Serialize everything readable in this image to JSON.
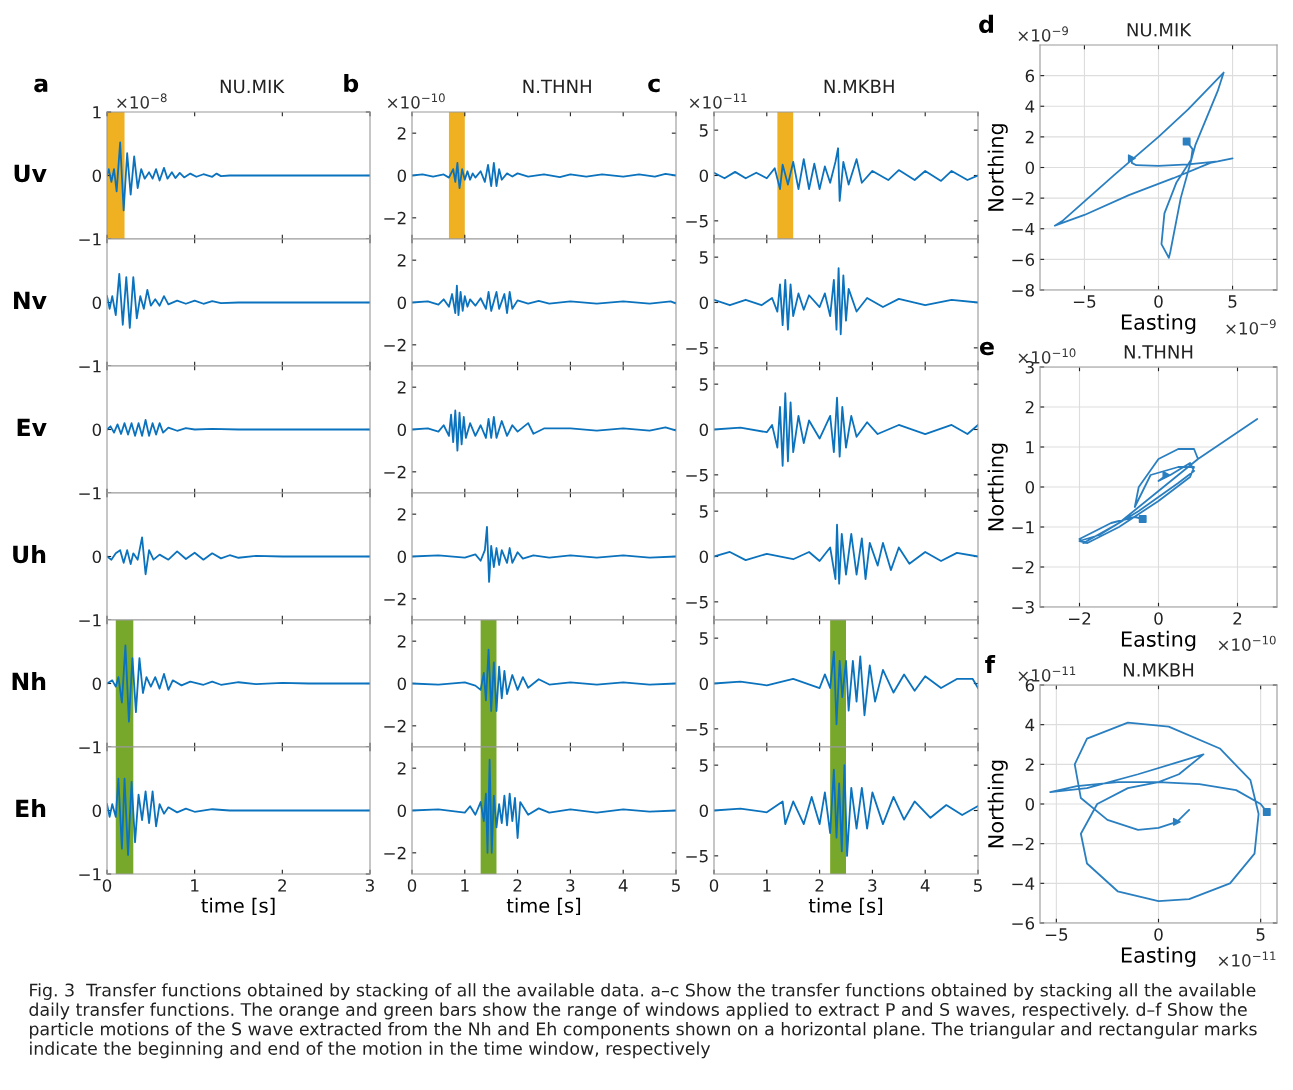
{
  "chart_data": [
    {
      "type": "line",
      "title": "NU.MIK",
      "ylabel": "Uv",
      "annotations": [
        "a",
        "×10$^{−8}$",
        "Fig. 3  Transfer functions obtained by stacking of all the available data. a–c Show the transfer functions obtained by stacking all the available daily transfer functions. The orange and green bars show the range of windows applied to extract P and S waves, respectively. d–f Show the particle motions of the S wave extracted from the Nh and Eh components shown on a horizontal plane. The triangular and rectangular marks indicate the beginning and end of the motion in the time window, respectively"
      ],
      "color": "#0b72bd",
      "xlim": [
        0,
        3
      ],
      "xticks": [
        0,
        1,
        2,
        3
      ],
      "ylim": [
        -1,
        1
      ],
      "yticks": [
        -1,
        0,
        1
      ],
      "tick_labels": "y",
      "bands": [
        {
          "axis": "x",
          "from": 0,
          "to": 0.2,
          "color": "#efb021"
        }
      ],
      "x": [
        0,
        0.02,
        0.05,
        0.08,
        0.11,
        0.15,
        0.19,
        0.23,
        0.27,
        0.31,
        0.35,
        0.39,
        0.43,
        0.48,
        0.52,
        0.56,
        0.6,
        0.65,
        0.69,
        0.74,
        0.78,
        0.83,
        0.88,
        0.95,
        1.02,
        1.1,
        1.2,
        1.25,
        1.3,
        1.4,
        2,
        3
      ],
      "values": [
        0,
        0.1,
        -0.1,
        0.1,
        -0.25,
        0.52,
        -0.55,
        0.35,
        -0.3,
        0.3,
        -0.2,
        0.1,
        -0.05,
        0.05,
        -0.05,
        0.1,
        -0.08,
        0.12,
        -0.05,
        0.05,
        -0.04,
        0.04,
        -0.03,
        0.03,
        -0.02,
        0.02,
        -0.02,
        0.03,
        -0.01,
        0,
        0,
        0
      ]
    },
    {
      "type": "line",
      "ylabel": "Nv",
      "color": "#0b72bd",
      "xlim": [
        0,
        3
      ],
      "xticks": [
        0,
        1,
        2,
        3
      ],
      "ylim": [
        -1,
        1
      ],
      "yticks": [
        -1,
        0
      ],
      "tick_labels": "y",
      "x": [
        0,
        0.03,
        0.06,
        0.1,
        0.14,
        0.18,
        0.22,
        0.26,
        0.3,
        0.34,
        0.38,
        0.42,
        0.46,
        0.5,
        0.55,
        0.6,
        0.65,
        0.7,
        0.8,
        0.9,
        1.0,
        1.1,
        1.2,
        1.3,
        1.5,
        3
      ],
      "values": [
        0.1,
        -0.1,
        0.1,
        -0.2,
        0.45,
        -0.35,
        0.4,
        -0.4,
        0.4,
        -0.25,
        0.1,
        -0.1,
        0.2,
        -0.05,
        0.05,
        -0.05,
        0.1,
        -0.03,
        0.03,
        -0.02,
        0.03,
        -0.02,
        0.02,
        -0.01,
        0,
        0
      ]
    },
    {
      "type": "line",
      "ylabel": "Ev",
      "color": "#0b72bd",
      "xlim": [
        0,
        3
      ],
      "xticks": [
        0,
        1,
        2,
        3
      ],
      "ylim": [
        -1,
        1
      ],
      "yticks": [
        -1,
        0
      ],
      "tick_labels": "y",
      "x": [
        0,
        0.04,
        0.08,
        0.12,
        0.16,
        0.2,
        0.24,
        0.28,
        0.32,
        0.36,
        0.4,
        0.44,
        0.48,
        0.52,
        0.56,
        0.6,
        0.64,
        0.7,
        0.8,
        0.9,
        1.0,
        1.2,
        1.5,
        3
      ],
      "values": [
        0,
        0.05,
        -0.05,
        0.08,
        -0.07,
        0.1,
        -0.08,
        0.1,
        -0.1,
        0.1,
        -0.1,
        0.15,
        -0.1,
        0.1,
        -0.08,
        0.1,
        -0.05,
        0.03,
        -0.02,
        0.02,
        0,
        0.01,
        0,
        0
      ]
    },
    {
      "type": "line",
      "ylabel": "Uh",
      "color": "#0b72bd",
      "xlim": [
        0,
        3
      ],
      "xticks": [
        0,
        1,
        2,
        3
      ],
      "ylim": [
        -1,
        1
      ],
      "yticks": [
        -1,
        0
      ],
      "tick_labels": "y",
      "x": [
        0,
        0.05,
        0.1,
        0.15,
        0.19,
        0.23,
        0.27,
        0.3,
        0.35,
        0.4,
        0.44,
        0.48,
        0.53,
        0.6,
        0.7,
        0.8,
        0.9,
        1.0,
        1.1,
        1.2,
        1.3,
        1.4,
        1.5,
        1.7,
        2,
        3
      ],
      "values": [
        0,
        -0.05,
        0.05,
        0.1,
        -0.1,
        0.1,
        -0.12,
        0.05,
        -0.05,
        0.3,
        -0.28,
        0.1,
        -0.05,
        0.03,
        -0.05,
        0.08,
        -0.04,
        0.06,
        -0.05,
        0.05,
        -0.03,
        0.02,
        -0.02,
        0.01,
        0,
        0
      ]
    },
    {
      "type": "line",
      "ylabel": "Nh",
      "color": "#0b72bd",
      "xlim": [
        0,
        3
      ],
      "xticks": [
        0,
        1,
        2,
        3
      ],
      "ylim": [
        -1,
        1
      ],
      "yticks": [
        -1,
        0
      ],
      "tick_labels": "y",
      "bands": [
        {
          "axis": "x",
          "from": 0.1,
          "to": 0.3,
          "color": "#78a82b"
        }
      ],
      "x": [
        0,
        0.06,
        0.1,
        0.13,
        0.17,
        0.21,
        0.25,
        0.29,
        0.33,
        0.37,
        0.41,
        0.45,
        0.5,
        0.55,
        0.6,
        0.65,
        0.7,
        0.75,
        0.85,
        0.95,
        1.1,
        1.2,
        1.3,
        1.5,
        1.7,
        2,
        2.3,
        3
      ],
      "values": [
        0,
        0.05,
        -0.05,
        0.1,
        -0.3,
        0.6,
        -0.6,
        0.4,
        -0.45,
        0.4,
        -0.15,
        0.1,
        -0.05,
        0.1,
        -0.08,
        0.15,
        -0.1,
        0.05,
        -0.03,
        0.03,
        -0.02,
        0.03,
        -0.02,
        0.02,
        -0.01,
        0.01,
        0,
        0
      ]
    },
    {
      "type": "line",
      "ylabel": "Eh",
      "xlabel": "time [s]",
      "color": "#0b72bd",
      "xlim": [
        0,
        3
      ],
      "xticks": [
        0,
        1,
        2,
        3
      ],
      "ylim": [
        -1,
        1
      ],
      "yticks": [
        -1,
        0
      ],
      "bands": [
        {
          "axis": "x",
          "from": 0.1,
          "to": 0.3,
          "color": "#78a82b"
        }
      ],
      "x": [
        0,
        0.03,
        0.06,
        0.1,
        0.13,
        0.17,
        0.2,
        0.24,
        0.28,
        0.32,
        0.36,
        0.4,
        0.44,
        0.48,
        0.52,
        0.56,
        0.6,
        0.65,
        0.7,
        0.8,
        0.9,
        1.0,
        1.2,
        1.4,
        3
      ],
      "values": [
        0.1,
        -0.1,
        0.1,
        -0.1,
        0.5,
        -0.6,
        0.5,
        -0.7,
        0.45,
        -0.5,
        0.25,
        -0.15,
        0.3,
        -0.2,
        0.3,
        -0.25,
        0.1,
        -0.05,
        0.05,
        -0.03,
        0.03,
        -0.02,
        0.02,
        0,
        0
      ]
    },
    {
      "type": "line",
      "title": "N.THNH",
      "annotations": [
        "b",
        "×10$^{−10}$"
      ],
      "color": "#0b72bd",
      "xlim": [
        0,
        5
      ],
      "xticks": [
        0,
        1,
        2,
        3,
        4,
        5
      ],
      "ylim": [
        -3,
        3
      ],
      "yticks": [
        -2,
        0,
        2
      ],
      "tick_labels": "y",
      "bands": [
        {
          "axis": "x",
          "from": 0.7,
          "to": 1.0,
          "color": "#efb021"
        }
      ],
      "x": [
        0,
        0.2,
        0.4,
        0.6,
        0.7,
        0.78,
        0.82,
        0.86,
        0.9,
        0.95,
        1.0,
        1.05,
        1.1,
        1.15,
        1.2,
        1.3,
        1.38,
        1.44,
        1.5,
        1.55,
        1.6,
        1.65,
        1.7,
        1.8,
        1.9,
        2.0,
        2.2,
        2.5,
        2.8,
        3,
        3.3,
        3.6,
        4,
        4.3,
        4.6,
        4.8,
        5
      ],
      "values": [
        0,
        0.05,
        -0.05,
        0.05,
        -0.1,
        0.3,
        -0.3,
        0.6,
        -0.6,
        0.3,
        -0.2,
        0.2,
        -0.2,
        0.1,
        -0.1,
        0.2,
        -0.3,
        0.5,
        -0.5,
        0.6,
        -0.5,
        0.3,
        -0.2,
        0.1,
        -0.05,
        0.1,
        -0.05,
        0.05,
        -0.08,
        0.05,
        -0.05,
        0.05,
        -0.05,
        0.05,
        -0.05,
        0.08,
        0
      ]
    },
    {
      "type": "line",
      "color": "#0b72bd",
      "xlim": [
        0,
        5
      ],
      "xticks": [
        0,
        1,
        2,
        3,
        4,
        5
      ],
      "ylim": [
        -3,
        3
      ],
      "yticks": [
        -2,
        0,
        2
      ],
      "tick_labels": "y",
      "x": [
        0,
        0.3,
        0.5,
        0.6,
        0.7,
        0.76,
        0.82,
        0.85,
        0.88,
        0.92,
        0.96,
        1.0,
        1.05,
        1.1,
        1.2,
        1.3,
        1.4,
        1.45,
        1.5,
        1.6,
        1.65,
        1.75,
        1.8,
        1.85,
        1.9,
        2.0,
        2.2,
        2.4,
        2.6,
        3,
        3.5,
        4,
        4.5,
        4.9,
        5
      ],
      "values": [
        0,
        0.05,
        -0.1,
        0.15,
        -0.2,
        0.4,
        -0.5,
        0.8,
        -0.6,
        0.5,
        -0.4,
        0.3,
        -0.2,
        0.15,
        -0.15,
        0.2,
        -0.3,
        0.5,
        -0.4,
        0.5,
        -0.3,
        0.4,
        -0.5,
        0.5,
        -0.3,
        0.1,
        -0.05,
        0.08,
        -0.05,
        0.05,
        -0.05,
        0.05,
        -0.05,
        0.05,
        -0.05
      ]
    },
    {
      "type": "line",
      "color": "#0b72bd",
      "xlim": [
        0,
        5
      ],
      "xticks": [
        0,
        1,
        2,
        3,
        4,
        5
      ],
      "ylim": [
        -3,
        3
      ],
      "yticks": [
        -2,
        0,
        2
      ],
      "tick_labels": "y",
      "x": [
        0,
        0.3,
        0.5,
        0.6,
        0.7,
        0.74,
        0.78,
        0.82,
        0.86,
        0.9,
        0.94,
        0.98,
        1.02,
        1.1,
        1.2,
        1.3,
        1.4,
        1.45,
        1.5,
        1.55,
        1.6,
        1.7,
        1.8,
        1.9,
        2.0,
        2.2,
        2.3,
        2.5,
        3,
        3.5,
        4,
        4.5,
        4.8,
        5
      ],
      "values": [
        0,
        0.05,
        -0.1,
        0.2,
        -0.3,
        0.7,
        -0.6,
        0.9,
        -1.0,
        0.8,
        -0.7,
        0.6,
        -0.4,
        0.3,
        -0.3,
        0.2,
        -0.4,
        0.5,
        -0.4,
        0.6,
        -0.4,
        0.4,
        -0.3,
        0.2,
        -0.1,
        0.3,
        -0.2,
        0.05,
        0.05,
        -0.05,
        0.05,
        -0.05,
        0.1,
        -0.05
      ]
    },
    {
      "type": "line",
      "color": "#0b72bd",
      "xlim": [
        0,
        5
      ],
      "xticks": [
        0,
        1,
        2,
        3,
        4,
        5
      ],
      "ylim": [
        -3,
        3
      ],
      "yticks": [
        -2,
        0,
        2
      ],
      "tick_labels": "y",
      "x": [
        0,
        0.5,
        1.0,
        1.2,
        1.3,
        1.38,
        1.42,
        1.46,
        1.5,
        1.55,
        1.6,
        1.65,
        1.7,
        1.8,
        1.85,
        1.9,
        2.0,
        2.1,
        2.3,
        2.6,
        3,
        3.5,
        4,
        4.5,
        5
      ],
      "values": [
        0,
        0.05,
        -0.05,
        0.1,
        -0.2,
        0.3,
        1.4,
        -1.2,
        0.5,
        -0.5,
        0.4,
        -0.4,
        0.3,
        -0.3,
        0.4,
        -0.3,
        0.2,
        -0.1,
        0.05,
        -0.05,
        0.05,
        -0.05,
        0.05,
        -0.05,
        0
      ]
    },
    {
      "type": "line",
      "color": "#0b72bd",
      "xlim": [
        0,
        5
      ],
      "xticks": [
        0,
        1,
        2,
        3,
        4,
        5
      ],
      "ylim": [
        -3,
        3
      ],
      "yticks": [
        -2,
        0,
        2
      ],
      "tick_labels": "y",
      "bands": [
        {
          "axis": "x",
          "from": 1.3,
          "to": 1.6,
          "color": "#78a82b"
        }
      ],
      "x": [
        0,
        0.5,
        1.0,
        1.2,
        1.3,
        1.36,
        1.4,
        1.45,
        1.5,
        1.55,
        1.6,
        1.65,
        1.7,
        1.75,
        1.8,
        1.9,
        2.0,
        2.1,
        2.2,
        2.4,
        2.6,
        3,
        3.5,
        4,
        4.5,
        5
      ],
      "values": [
        0,
        -0.05,
        0.05,
        -0.1,
        -0.3,
        0.5,
        -0.8,
        1.6,
        -1.3,
        1.0,
        -1.3,
        0.8,
        -0.7,
        0.6,
        -0.5,
        0.4,
        -0.3,
        0.3,
        -0.2,
        0.2,
        -0.05,
        0.05,
        -0.05,
        0.05,
        -0.05,
        0
      ]
    },
    {
      "type": "line",
      "xlabel": "time [s]",
      "color": "#0b72bd",
      "xlim": [
        0,
        5
      ],
      "xticks": [
        0,
        1,
        2,
        3,
        4,
        5
      ],
      "ylim": [
        -3,
        3
      ],
      "yticks": [
        -2,
        0,
        2
      ],
      "bands": [
        {
          "axis": "x",
          "from": 1.3,
          "to": 1.6,
          "color": "#78a82b"
        }
      ],
      "x": [
        0,
        0.5,
        1.0,
        1.1,
        1.2,
        1.3,
        1.36,
        1.4,
        1.43,
        1.47,
        1.51,
        1.55,
        1.6,
        1.65,
        1.7,
        1.75,
        1.8,
        1.85,
        1.9,
        1.95,
        2.0,
        2.05,
        2.2,
        2.4,
        2.6,
        3,
        3.5,
        4,
        4.5,
        5
      ],
      "values": [
        0,
        0.05,
        -0.1,
        0.2,
        -0.2,
        0.4,
        -0.5,
        0.8,
        -2.0,
        2.4,
        -2.0,
        0.7,
        -0.8,
        0.3,
        -0.6,
        0.7,
        -0.7,
        0.8,
        -0.5,
        0.6,
        -1.3,
        0.4,
        -0.2,
        0.1,
        -0.1,
        0.05,
        -0.1,
        0.05,
        -0.05,
        0
      ]
    },
    {
      "type": "line",
      "title": "N.MKBH",
      "annotations": [
        "c",
        "×10$^{−11}$"
      ],
      "color": "#0b72bd",
      "xlim": [
        0,
        5
      ],
      "xticks": [
        0,
        1,
        2,
        3,
        4,
        5
      ],
      "ylim": [
        -7,
        7
      ],
      "yticks": [
        -5,
        0,
        5
      ],
      "tick_labels": "y",
      "bands": [
        {
          "axis": "x",
          "from": 1.2,
          "to": 1.5,
          "color": "#efb021"
        }
      ],
      "x": [
        0,
        0.2,
        0.4,
        0.6,
        0.8,
        1.0,
        1.15,
        1.25,
        1.3,
        1.4,
        1.5,
        1.6,
        1.7,
        1.8,
        1.9,
        2.0,
        2.1,
        2.2,
        2.3,
        2.35,
        2.38,
        2.45,
        2.55,
        2.7,
        2.8,
        3.0,
        3.3,
        3.5,
        3.8,
        4.0,
        4.3,
        4.5,
        4.8,
        5
      ],
      "values": [
        0.3,
        -0.3,
        0.4,
        -0.3,
        0.3,
        -0.3,
        0.8,
        -1.5,
        1.2,
        -1.0,
        1.5,
        -1.5,
        1.8,
        -1.5,
        1.3,
        -1.5,
        1.0,
        -0.8,
        1.5,
        3.0,
        -2.8,
        1.5,
        -1.0,
        1.8,
        -0.8,
        0.5,
        -0.5,
        0.6,
        -0.5,
        0.5,
        -0.6,
        0.5,
        -0.5,
        0
      ]
    },
    {
      "type": "line",
      "color": "#0b72bd",
      "xlim": [
        0,
        5
      ],
      "xticks": [
        0,
        1,
        2,
        3,
        4,
        5
      ],
      "ylim": [
        -7,
        7
      ],
      "yticks": [
        -5,
        0,
        5
      ],
      "tick_labels": "y",
      "x": [
        0,
        0.3,
        0.6,
        0.9,
        1.1,
        1.2,
        1.25,
        1.3,
        1.35,
        1.4,
        1.45,
        1.5,
        1.6,
        1.7,
        1.8,
        2.0,
        2.1,
        2.2,
        2.27,
        2.32,
        2.36,
        2.4,
        2.45,
        2.5,
        2.55,
        2.7,
        2.9,
        3.2,
        3.5,
        4,
        4.5,
        5
      ],
      "values": [
        0.3,
        -0.3,
        0.3,
        -0.3,
        0.5,
        -1.0,
        2.0,
        -2.5,
        2.5,
        -3.0,
        2.0,
        -1.5,
        1.0,
        -0.8,
        0.8,
        -0.5,
        1.0,
        -1.5,
        2.5,
        -3.0,
        3.8,
        -3.5,
        3.0,
        -2.0,
        1.5,
        -1.0,
        0.5,
        -0.5,
        0.4,
        -0.3,
        0.3,
        0
      ]
    },
    {
      "type": "line",
      "color": "#0b72bd",
      "xlim": [
        0,
        5
      ],
      "xticks": [
        0,
        1,
        2,
        3,
        4,
        5
      ],
      "ylim": [
        -7,
        7
      ],
      "yticks": [
        -5,
        0,
        5
      ],
      "tick_labels": "y",
      "x": [
        0,
        0.5,
        1.0,
        1.1,
        1.2,
        1.25,
        1.3,
        1.35,
        1.4,
        1.45,
        1.5,
        1.6,
        1.7,
        1.8,
        2.0,
        2.2,
        2.27,
        2.33,
        2.38,
        2.43,
        2.5,
        2.6,
        2.7,
        2.9,
        3.1,
        3.5,
        4,
        4.5,
        4.8,
        5
      ],
      "values": [
        0,
        0.2,
        -0.3,
        0.5,
        -2.0,
        2.5,
        -4.0,
        4.0,
        -3.5,
        3.0,
        -2.5,
        1.5,
        -1.5,
        1.0,
        -1.0,
        1.5,
        -2.5,
        3.5,
        -3.0,
        2.5,
        -2.0,
        1.5,
        -0.8,
        0.8,
        -0.5,
        0.5,
        -0.5,
        0.5,
        -0.5,
        0.5
      ]
    },
    {
      "type": "line",
      "color": "#0b72bd",
      "xlim": [
        0,
        5
      ],
      "xticks": [
        0,
        1,
        2,
        3,
        4,
        5
      ],
      "ylim": [
        -7,
        7
      ],
      "yticks": [
        -5,
        0,
        5
      ],
      "tick_labels": "y",
      "x": [
        0,
        0.3,
        0.6,
        1.0,
        1.5,
        1.8,
        2.0,
        2.2,
        2.3,
        2.33,
        2.37,
        2.42,
        2.5,
        2.6,
        2.7,
        2.8,
        2.87,
        2.95,
        3.1,
        3.2,
        3.35,
        3.5,
        3.7,
        4.0,
        4.3,
        4.6,
        5
      ],
      "values": [
        0,
        0.5,
        -0.4,
        0.3,
        -0.3,
        0.5,
        -0.5,
        1.0,
        -2.5,
        3.5,
        -3.0,
        2.5,
        -2.0,
        2.5,
        -2.0,
        2.0,
        -2.5,
        1.5,
        -1.0,
        1.5,
        -1.5,
        1.0,
        -0.8,
        0.5,
        -0.5,
        0.4,
        0
      ]
    },
    {
      "type": "line",
      "color": "#0b72bd",
      "xlim": [
        0,
        5
      ],
      "xticks": [
        0,
        1,
        2,
        3,
        4,
        5
      ],
      "ylim": [
        -7,
        7
      ],
      "yticks": [
        -5,
        0,
        5
      ],
      "tick_labels": "y",
      "bands": [
        {
          "axis": "x",
          "from": 2.2,
          "to": 2.5,
          "color": "#78a82b"
        }
      ],
      "x": [
        0,
        0.5,
        1.0,
        1.5,
        2.0,
        2.1,
        2.2,
        2.27,
        2.32,
        2.38,
        2.43,
        2.5,
        2.55,
        2.63,
        2.7,
        2.77,
        2.85,
        2.95,
        3.05,
        3.2,
        3.4,
        3.6,
        3.8,
        4.0,
        4.3,
        4.6,
        4.9,
        5
      ],
      "values": [
        0,
        0.2,
        -0.2,
        0.5,
        -0.5,
        1.0,
        -0.5,
        3.5,
        -4.5,
        2.5,
        -1.5,
        2.5,
        -3.0,
        2.5,
        -2.0,
        3.0,
        -3.5,
        2.0,
        -2.0,
        1.5,
        -1.0,
        1.0,
        -0.8,
        0.8,
        -0.5,
        0.5,
        0.5,
        -0.5
      ]
    },
    {
      "type": "line",
      "xlabel": "time [s]",
      "color": "#0b72bd",
      "xlim": [
        0,
        5
      ],
      "xticks": [
        0,
        1,
        2,
        3,
        4,
        5
      ],
      "ylim": [
        -7,
        7
      ],
      "yticks": [
        -5,
        0,
        5
      ],
      "bands": [
        {
          "axis": "x",
          "from": 2.2,
          "to": 2.5,
          "color": "#78a82b"
        }
      ],
      "x": [
        0,
        0.5,
        1.0,
        1.3,
        1.35,
        1.5,
        1.7,
        1.85,
        2.0,
        2.1,
        2.2,
        2.27,
        2.32,
        2.37,
        2.42,
        2.47,
        2.52,
        2.6,
        2.7,
        2.8,
        2.9,
        3.0,
        3.2,
        3.4,
        3.6,
        3.8,
        4.1,
        4.4,
        4.7,
        5
      ],
      "values": [
        0,
        0.2,
        -0.2,
        1.0,
        -1.5,
        1.0,
        -1.5,
        1.5,
        -1.5,
        2.0,
        -2.5,
        4.5,
        -3.0,
        3.0,
        -4.5,
        5.0,
        -5.0,
        2.5,
        -2.0,
        2.5,
        -2.0,
        2.0,
        -1.5,
        1.5,
        -1.0,
        1.0,
        -0.8,
        0.6,
        -0.5,
        0.5
      ]
    },
    {
      "type": "line",
      "title": "NU.MIK",
      "xlabel": "Easting",
      "ylabel": "Northing",
      "annotations": [
        "d",
        "×10$^{−9}$",
        "×10$^{−9}$"
      ],
      "grid": true,
      "xlim": [
        -8,
        8
      ],
      "xticks": [
        -5,
        0,
        5
      ],
      "ylim": [
        -8,
        8
      ],
      "yticks": [
        -8,
        -6,
        -4,
        -2,
        0,
        2,
        4,
        6
      ],
      "series": [
        {
          "type": "line",
          "color": "#2a7fc0",
          "x": [
            -1.8,
            -1.8,
            -1.5,
            0,
            2,
            4,
            5,
            3.5,
            1,
            -2,
            -5,
            -7,
            -6.5,
            -3,
            0,
            2,
            4.4,
            4,
            2.5,
            1.5,
            0.8,
            0.7,
            0.2,
            0.4,
            1.2,
            2.2,
            2.3,
            1.9
          ],
          "values": [
            0.6,
            0.3,
            0.15,
            0.1,
            0.2,
            0.4,
            0.6,
            0.3,
            -0.7,
            -1.8,
            -3.1,
            -3.8,
            -3.5,
            -0.5,
            2,
            3.8,
            6.2,
            5,
            1.5,
            -2,
            -5.5,
            -5.9,
            -5,
            -3,
            -1,
            0.5,
            1.2,
            1.7
          ]
        },
        {
          "type": "scatter",
          "marker": "triangle",
          "color": "#2a7fc0",
          "x": [
            -1.8
          ],
          "values": [
            0.6
          ]
        },
        {
          "type": "scatter",
          "marker": "square",
          "color": "#2a7fc0",
          "x": [
            1.9
          ],
          "values": [
            1.7
          ]
        }
      ]
    },
    {
      "type": "line",
      "title": "N.THNH",
      "xlabel": "Easting",
      "ylabel": "Northing",
      "annotations": [
        "e",
        "×10$^{−10}$",
        "×10$^{−10}$"
      ],
      "grid": true,
      "xlim": [
        -3,
        3
      ],
      "xticks": [
        -2,
        0,
        2
      ],
      "ylim": [
        -3,
        3
      ],
      "yticks": [
        -3,
        -2,
        -1,
        0,
        1,
        2,
        3
      ],
      "series": [
        {
          "type": "line",
          "color": "#2a7fc0",
          "x": [
            0.2,
            0,
            0.3,
            0.8,
            0.9,
            0.5,
            -0.5,
            -1.5,
            -2,
            -1.8,
            -1,
            0,
            0.8,
            0.9,
            0.5,
            -0.2,
            -0.6,
            -0.5,
            0,
            0.5,
            0.9,
            1,
            2.5,
            1,
            0,
            -1,
            -1.9,
            -2,
            -1.2,
            -0.6,
            -0.4
          ],
          "values": [
            0.3,
            0.15,
            0.3,
            0.6,
            0.4,
            0.1,
            -0.6,
            -1.2,
            -1.35,
            -1.4,
            -1,
            -0.35,
            0.25,
            0.5,
            0.5,
            0.3,
            -0.5,
            0,
            0.7,
            0.95,
            0.95,
            0.7,
            1.7,
            0.7,
            -0.1,
            -0.9,
            -1.4,
            -1.3,
            -0.9,
            -0.75,
            -0.8
          ]
        },
        {
          "type": "scatter",
          "marker": "triangle",
          "color": "#2a7fc0",
          "x": [
            0.2
          ],
          "values": [
            0.3
          ]
        },
        {
          "type": "scatter",
          "marker": "square",
          "color": "#2a7fc0",
          "x": [
            -0.4
          ],
          "values": [
            -0.8
          ]
        }
      ]
    },
    {
      "type": "line",
      "title": "N.MKBH",
      "xlabel": "Easting",
      "ylabel": "Northing",
      "annotations": [
        "f",
        "×10$^{−11}$",
        "×10$^{−11}$"
      ],
      "grid": true,
      "xlim": [
        -5.8,
        5.8
      ],
      "xticks": [
        -5,
        0,
        5
      ],
      "ylim": [
        -6,
        6
      ],
      "yticks": [
        -6,
        -4,
        -2,
        0,
        2,
        4,
        6
      ],
      "series": [
        {
          "type": "line",
          "color": "#2a7fc0",
          "x": [
            0.9,
            1.2,
            1.5,
            1.3,
            0.9,
            0,
            -1,
            -2.5,
            -3.8,
            -4.1,
            -3.5,
            -1.5,
            0.5,
            3,
            4.5,
            4.9,
            4.7,
            3.5,
            1.5,
            0,
            -2,
            -3.5,
            -3.8,
            -3,
            -1.5,
            0,
            1,
            2.2,
            -1,
            -3.5,
            -5.3,
            -4,
            -2,
            0,
            2,
            3.8,
            5,
            5.3
          ],
          "values": [
            -0.9,
            -0.6,
            -0.3,
            -0.5,
            -0.9,
            -1.2,
            -1.3,
            -0.8,
            0.3,
            2,
            3.3,
            4.1,
            3.9,
            2.8,
            1.2,
            -0.5,
            -2.5,
            -4,
            -4.8,
            -4.9,
            -4.4,
            -3,
            -1.5,
            0,
            0.8,
            1.1,
            1.5,
            2.5,
            1.5,
            0.8,
            0.6,
            0.9,
            1.1,
            1.1,
            1,
            0.7,
            0,
            -0.4
          ]
        },
        {
          "type": "scatter",
          "marker": "triangle",
          "color": "#2a7fc0",
          "x": [
            0.9
          ],
          "values": [
            -0.9
          ]
        },
        {
          "type": "scatter",
          "marker": "square",
          "color": "#2a7fc0",
          "x": [
            5.3
          ],
          "values": [
            -0.4
          ]
        }
      ]
    }
  ]
}
